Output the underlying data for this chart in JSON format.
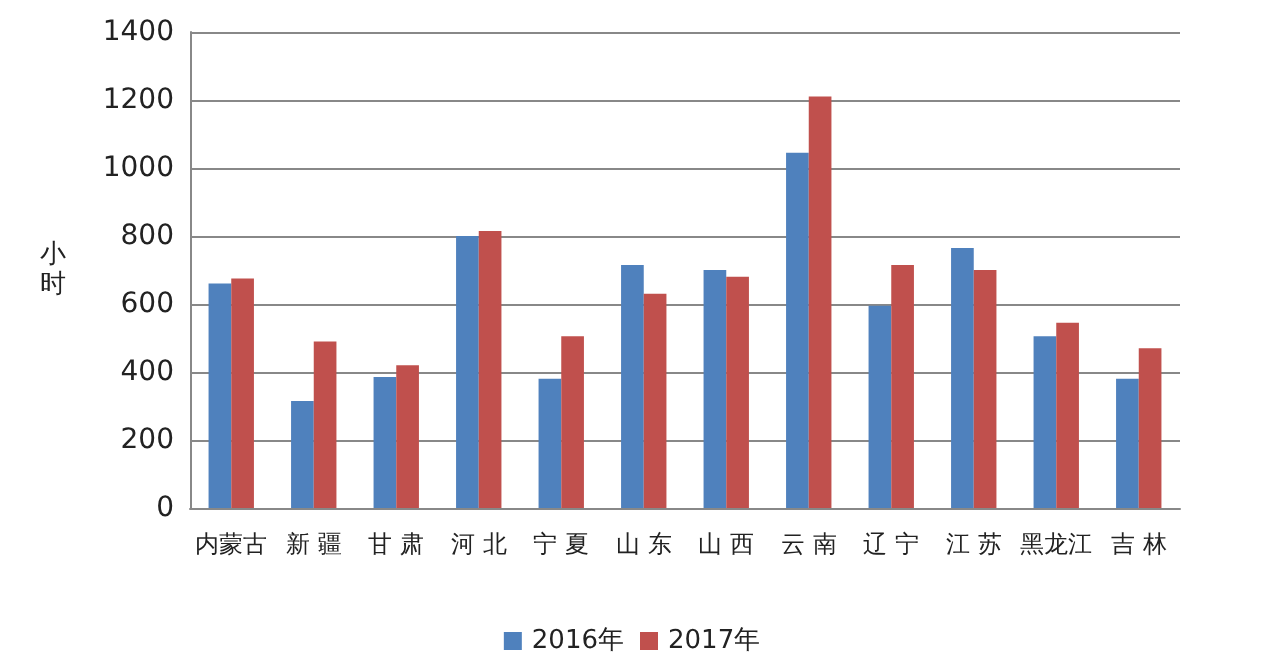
{
  "chart_data": {
    "type": "bar",
    "ylabel": "小时",
    "categories": [
      "内蒙古",
      "新 疆",
      "甘 肃",
      "河 北",
      "宁 夏",
      "山 东",
      "山 西",
      "云 南",
      "辽 宁",
      "江 苏",
      "黑龙江",
      "吉 林"
    ],
    "series": [
      {
        "name": "2016年",
        "color": "#4f81bd",
        "values": [
          660,
          315,
          385,
          800,
          380,
          715,
          700,
          1045,
          595,
          765,
          505,
          380
        ]
      },
      {
        "name": "2017年",
        "color": "#c0504d",
        "values": [
          675,
          490,
          420,
          815,
          505,
          630,
          680,
          1210,
          715,
          700,
          545,
          470
        ]
      }
    ],
    "ylim": [
      0,
      1400
    ],
    "yticks": [
      0,
      200,
      400,
      600,
      800,
      1000,
      1200,
      1400
    ],
    "grid": "y",
    "legend": "bottom"
  }
}
